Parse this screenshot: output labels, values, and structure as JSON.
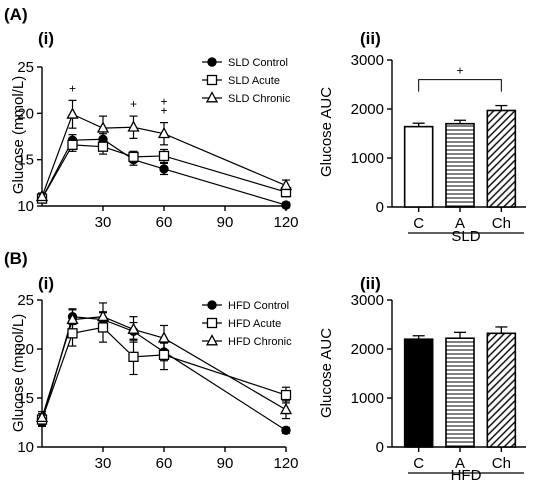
{
  "chart_data": [
    {
      "type": "line",
      "panel": "(A)",
      "subpanel": "(i)",
      "ylabel": "Glucose (mmol/L)",
      "xlabel": "",
      "x_ticks": [
        "30",
        "60",
        "90",
        "120"
      ],
      "y_ticks": [
        "10",
        "15",
        "20",
        "25"
      ],
      "xlim": [
        0,
        120
      ],
      "ylim": [
        10,
        25
      ],
      "legend_position": "top-right",
      "x": [
        0,
        15,
        30,
        45,
        60,
        120
      ],
      "series": [
        {
          "name": "SLD Control",
          "marker": "circle-filled",
          "values": [
            10.8,
            17.1,
            17.2,
            15.0,
            14.0,
            10.1
          ],
          "errors": [
            0.4,
            0.6,
            0.6,
            0.6,
            0.6,
            0.3
          ]
        },
        {
          "name": "SLD Acute",
          "marker": "square-open",
          "values": [
            10.8,
            16.6,
            16.4,
            15.3,
            15.4,
            11.5
          ],
          "errors": [
            0.4,
            0.7,
            0.8,
            0.6,
            0.7,
            0.5
          ]
        },
        {
          "name": "SLD Chronic",
          "marker": "triangle-open",
          "values": [
            11.0,
            19.9,
            18.4,
            18.5,
            17.8,
            12.2
          ],
          "errors": [
            0.4,
            1.5,
            1.3,
            1.2,
            1.2,
            0.6
          ]
        }
      ],
      "annotations": [
        {
          "x": 15,
          "text": "+"
        },
        {
          "x": 45,
          "text": "+"
        },
        {
          "x": 60,
          "text": "+"
        },
        {
          "x": 60,
          "text": "+"
        }
      ]
    },
    {
      "type": "bar",
      "panel": "(A)",
      "subpanel": "(ii)",
      "ylabel": "Glucose AUC",
      "categories": [
        "C",
        "A",
        "Ch"
      ],
      "group_label": "SLD",
      "values": [
        1640,
        1700,
        1970
      ],
      "errors": [
        70,
        70,
        100
      ],
      "fills": [
        "open",
        "horizontal-hatch",
        "diagonal-hatch"
      ],
      "ylim": [
        0,
        3000
      ],
      "y_ticks": [
        "0",
        "1000",
        "2000",
        "3000"
      ],
      "significance": {
        "from": "C",
        "to": "Ch",
        "text": "+"
      }
    },
    {
      "type": "line",
      "panel": "(B)",
      "subpanel": "(i)",
      "ylabel": "Glucose (mmol/L)",
      "xlabel": "",
      "x_ticks": [
        "30",
        "60",
        "90",
        "120"
      ],
      "y_ticks": [
        "10",
        "15",
        "20",
        "25"
      ],
      "xlim": [
        0,
        120
      ],
      "ylim": [
        10,
        25
      ],
      "legend_position": "top-right",
      "x": [
        0,
        15,
        30,
        45,
        60,
        120
      ],
      "series": [
        {
          "name": "HFD Control",
          "marker": "circle-filled",
          "values": [
            12.6,
            23.3,
            23.0,
            21.8,
            19.7,
            11.7
          ],
          "errors": [
            0.5,
            0.8,
            0.8,
            0.9,
            0.9,
            0.3
          ]
        },
        {
          "name": "HFD Acute",
          "marker": "square-open",
          "values": [
            12.8,
            21.6,
            22.2,
            19.2,
            19.4,
            15.3
          ],
          "errors": [
            0.6,
            1.3,
            1.5,
            1.8,
            1.5,
            0.8
          ]
        },
        {
          "name": "HFD Chronic",
          "marker": "triangle-open",
          "values": [
            13.0,
            23.0,
            23.3,
            22.0,
            21.1,
            13.8
          ],
          "errors": [
            0.6,
            1.0,
            1.4,
            1.3,
            1.3,
            0.9
          ]
        }
      ]
    },
    {
      "type": "bar",
      "panel": "(B)",
      "subpanel": "(ii)",
      "ylabel": "Glucose AUC",
      "categories": [
        "C",
        "A",
        "Ch"
      ],
      "group_label": "HFD",
      "values": [
        2200,
        2220,
        2320
      ],
      "errors": [
        70,
        120,
        130
      ],
      "fills": [
        "solid",
        "horizontal-hatch",
        "diagonal-hatch"
      ],
      "ylim": [
        0,
        3000
      ],
      "y_ticks": [
        "0",
        "1000",
        "2000",
        "3000"
      ]
    }
  ]
}
